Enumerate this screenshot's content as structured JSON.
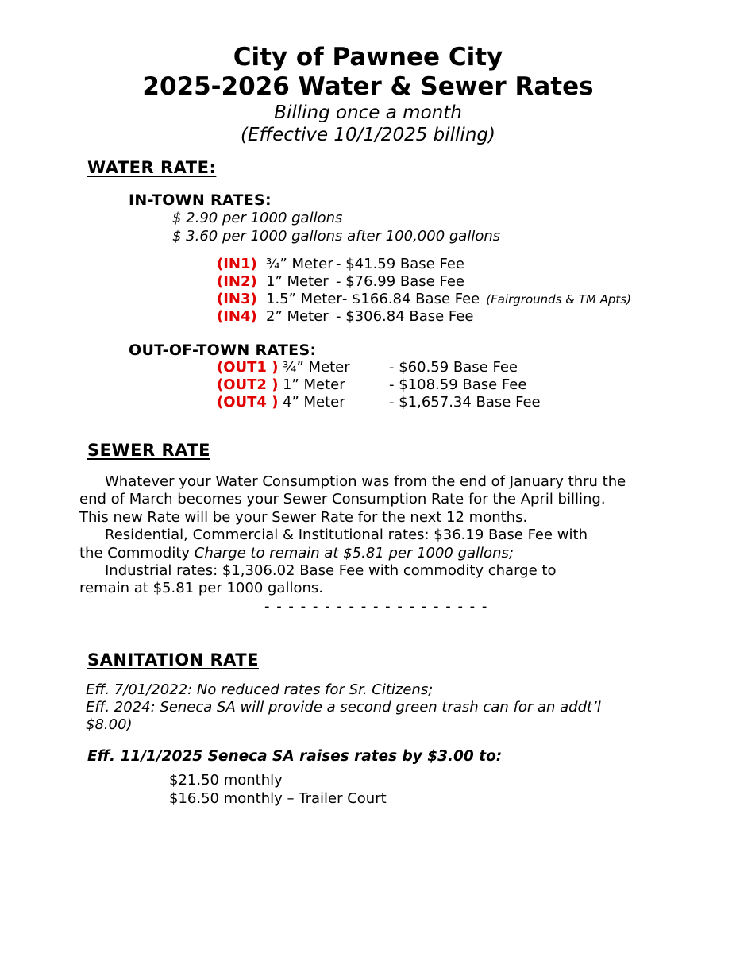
{
  "title": {
    "line1": "City of Pawnee City",
    "line2": "2025-2026 Water & Sewer Rates",
    "subtitle1": "Billing once a month",
    "subtitle2": "(Effective 10/1/2025 billing)"
  },
  "water": {
    "heading": "WATER RATE:",
    "in_town": {
      "heading": "IN-TOWN RATES:",
      "rate_lines": [
        "$ 2.90 per 1000 gallons",
        "$ 3.60 per 1000 gallons after 100,000 gallons"
      ],
      "rows": [
        {
          "code": "(IN1)",
          "meter": "¾” Meter",
          "fee": "- $41.59 Base Fee",
          "note": ""
        },
        {
          "code": "(IN2)",
          "meter": "1” Meter",
          "fee": "- $76.99 Base Fee",
          "note": ""
        },
        {
          "code": "(IN3)",
          "meter": "1.5” Meter",
          "fee": "- $166.84 Base Fee",
          "note": "(Fairgrounds & TM Apts)"
        },
        {
          "code": "(IN4)",
          "meter": "2” Meter",
          "fee": "- $306.84 Base Fee",
          "note": ""
        }
      ]
    },
    "out_of_town": {
      "heading": "OUT-OF-TOWN RATES:",
      "rows": [
        {
          "code": "(OUT1 )",
          "meter": "¾” Meter",
          "fee": "- $60.59 Base Fee"
        },
        {
          "code": "(OUT2 )",
          "meter": "1” Meter",
          "fee": "- $108.59 Base Fee"
        },
        {
          "code": "(OUT4 )",
          "meter": "4” Meter",
          "fee": "- $1,657.34 Base Fee"
        }
      ]
    }
  },
  "sewer": {
    "heading": "SEWER RATE",
    "lines": {
      "l1": "Whatever your Water Consumption was from the end of January thru the",
      "l2": "end of March becomes your Sewer Consumption Rate for the April billing.",
      "l3": "This new Rate will be your Sewer Rate for the next 12 months.",
      "l4": "Residential, Commercial & Institutional rates: $36.19 Base Fee with",
      "l5_regular": "the Commodity ",
      "l5_italic": "Charge to remain at $5.81 per 1000 gallons;",
      "l6": "Industrial rates: $1,306.02 Base Fee with commodity charge to",
      "l7": "remain at $5.81 per 1000 gallons."
    },
    "divider": "- - - - - - - - - - - - - - - - - - -"
  },
  "sanitation": {
    "heading": "SANITATION RATE",
    "notes": [
      "Eff. 7/01/2022: No reduced rates for Sr. Citizens;",
      "Eff. 2024: Seneca SA will provide a second green trash can for an addt’l",
      "$8.00)"
    ],
    "increase_line": "Eff. 11/1/2025 Seneca SA raises rates by $3.00 to:",
    "monthly_rates": [
      "$21.50 monthly",
      "$16.50 monthly – Trailer Court"
    ]
  },
  "colors": {
    "accent_red": "#e00000",
    "text": "#000000",
    "background": "#ffffff"
  }
}
